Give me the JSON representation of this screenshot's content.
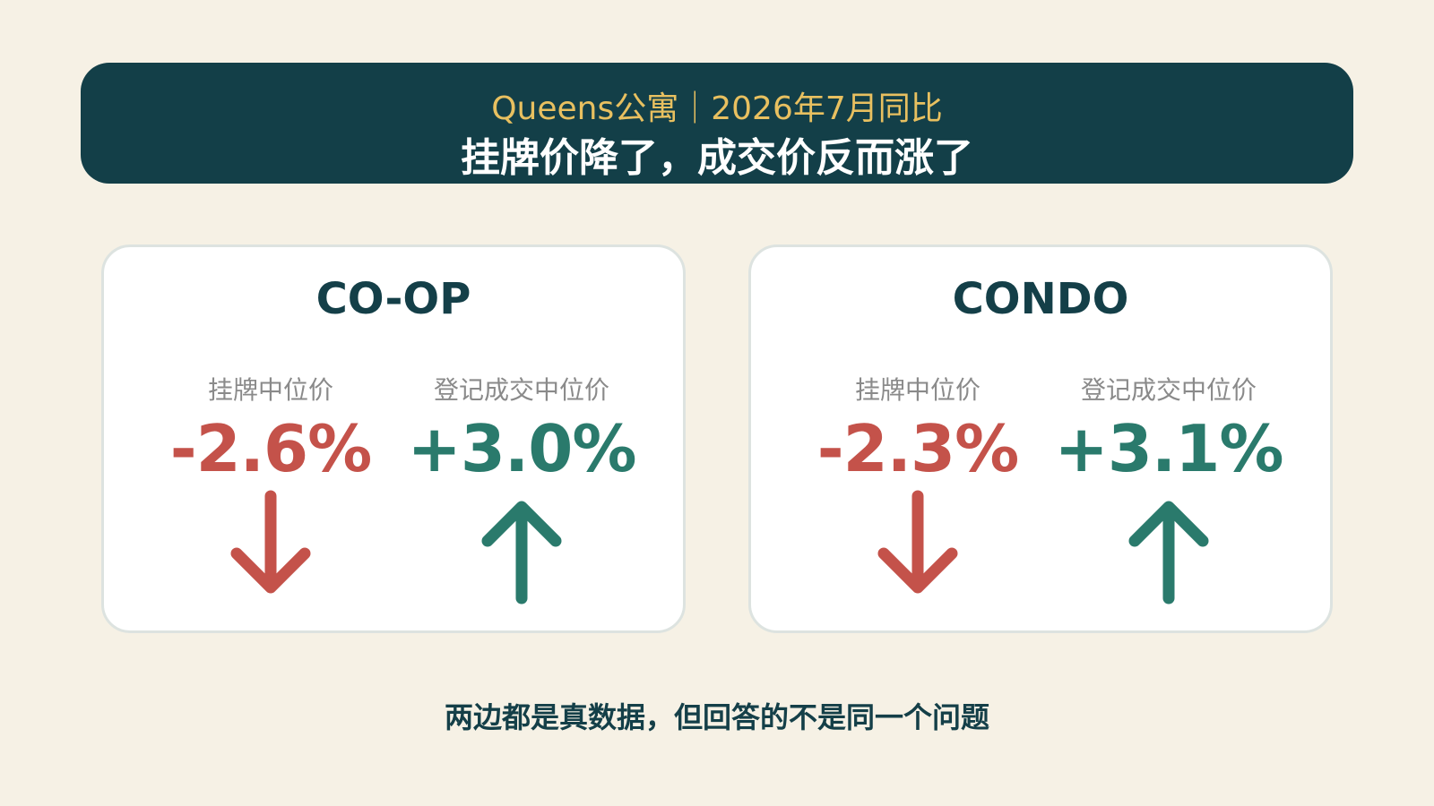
{
  "header": {
    "subtitle": "Queens公寓｜2026年7月同比",
    "title": "挂牌价降了，成交价反而涨了"
  },
  "cards": [
    {
      "title": "CO-OP",
      "metrics": [
        {
          "label": "挂牌中位价",
          "value": "-2.6%"
        },
        {
          "label": "登记成交中位价",
          "value": "+3.0%"
        }
      ]
    },
    {
      "title": "CONDO",
      "metrics": [
        {
          "label": "挂牌中位价",
          "value": "-2.3%"
        },
        {
          "label": "登记成交中位价",
          "value": "+3.1%"
        }
      ]
    }
  ],
  "footer": "两边都是真数据，但回答的不是同一个问题"
}
